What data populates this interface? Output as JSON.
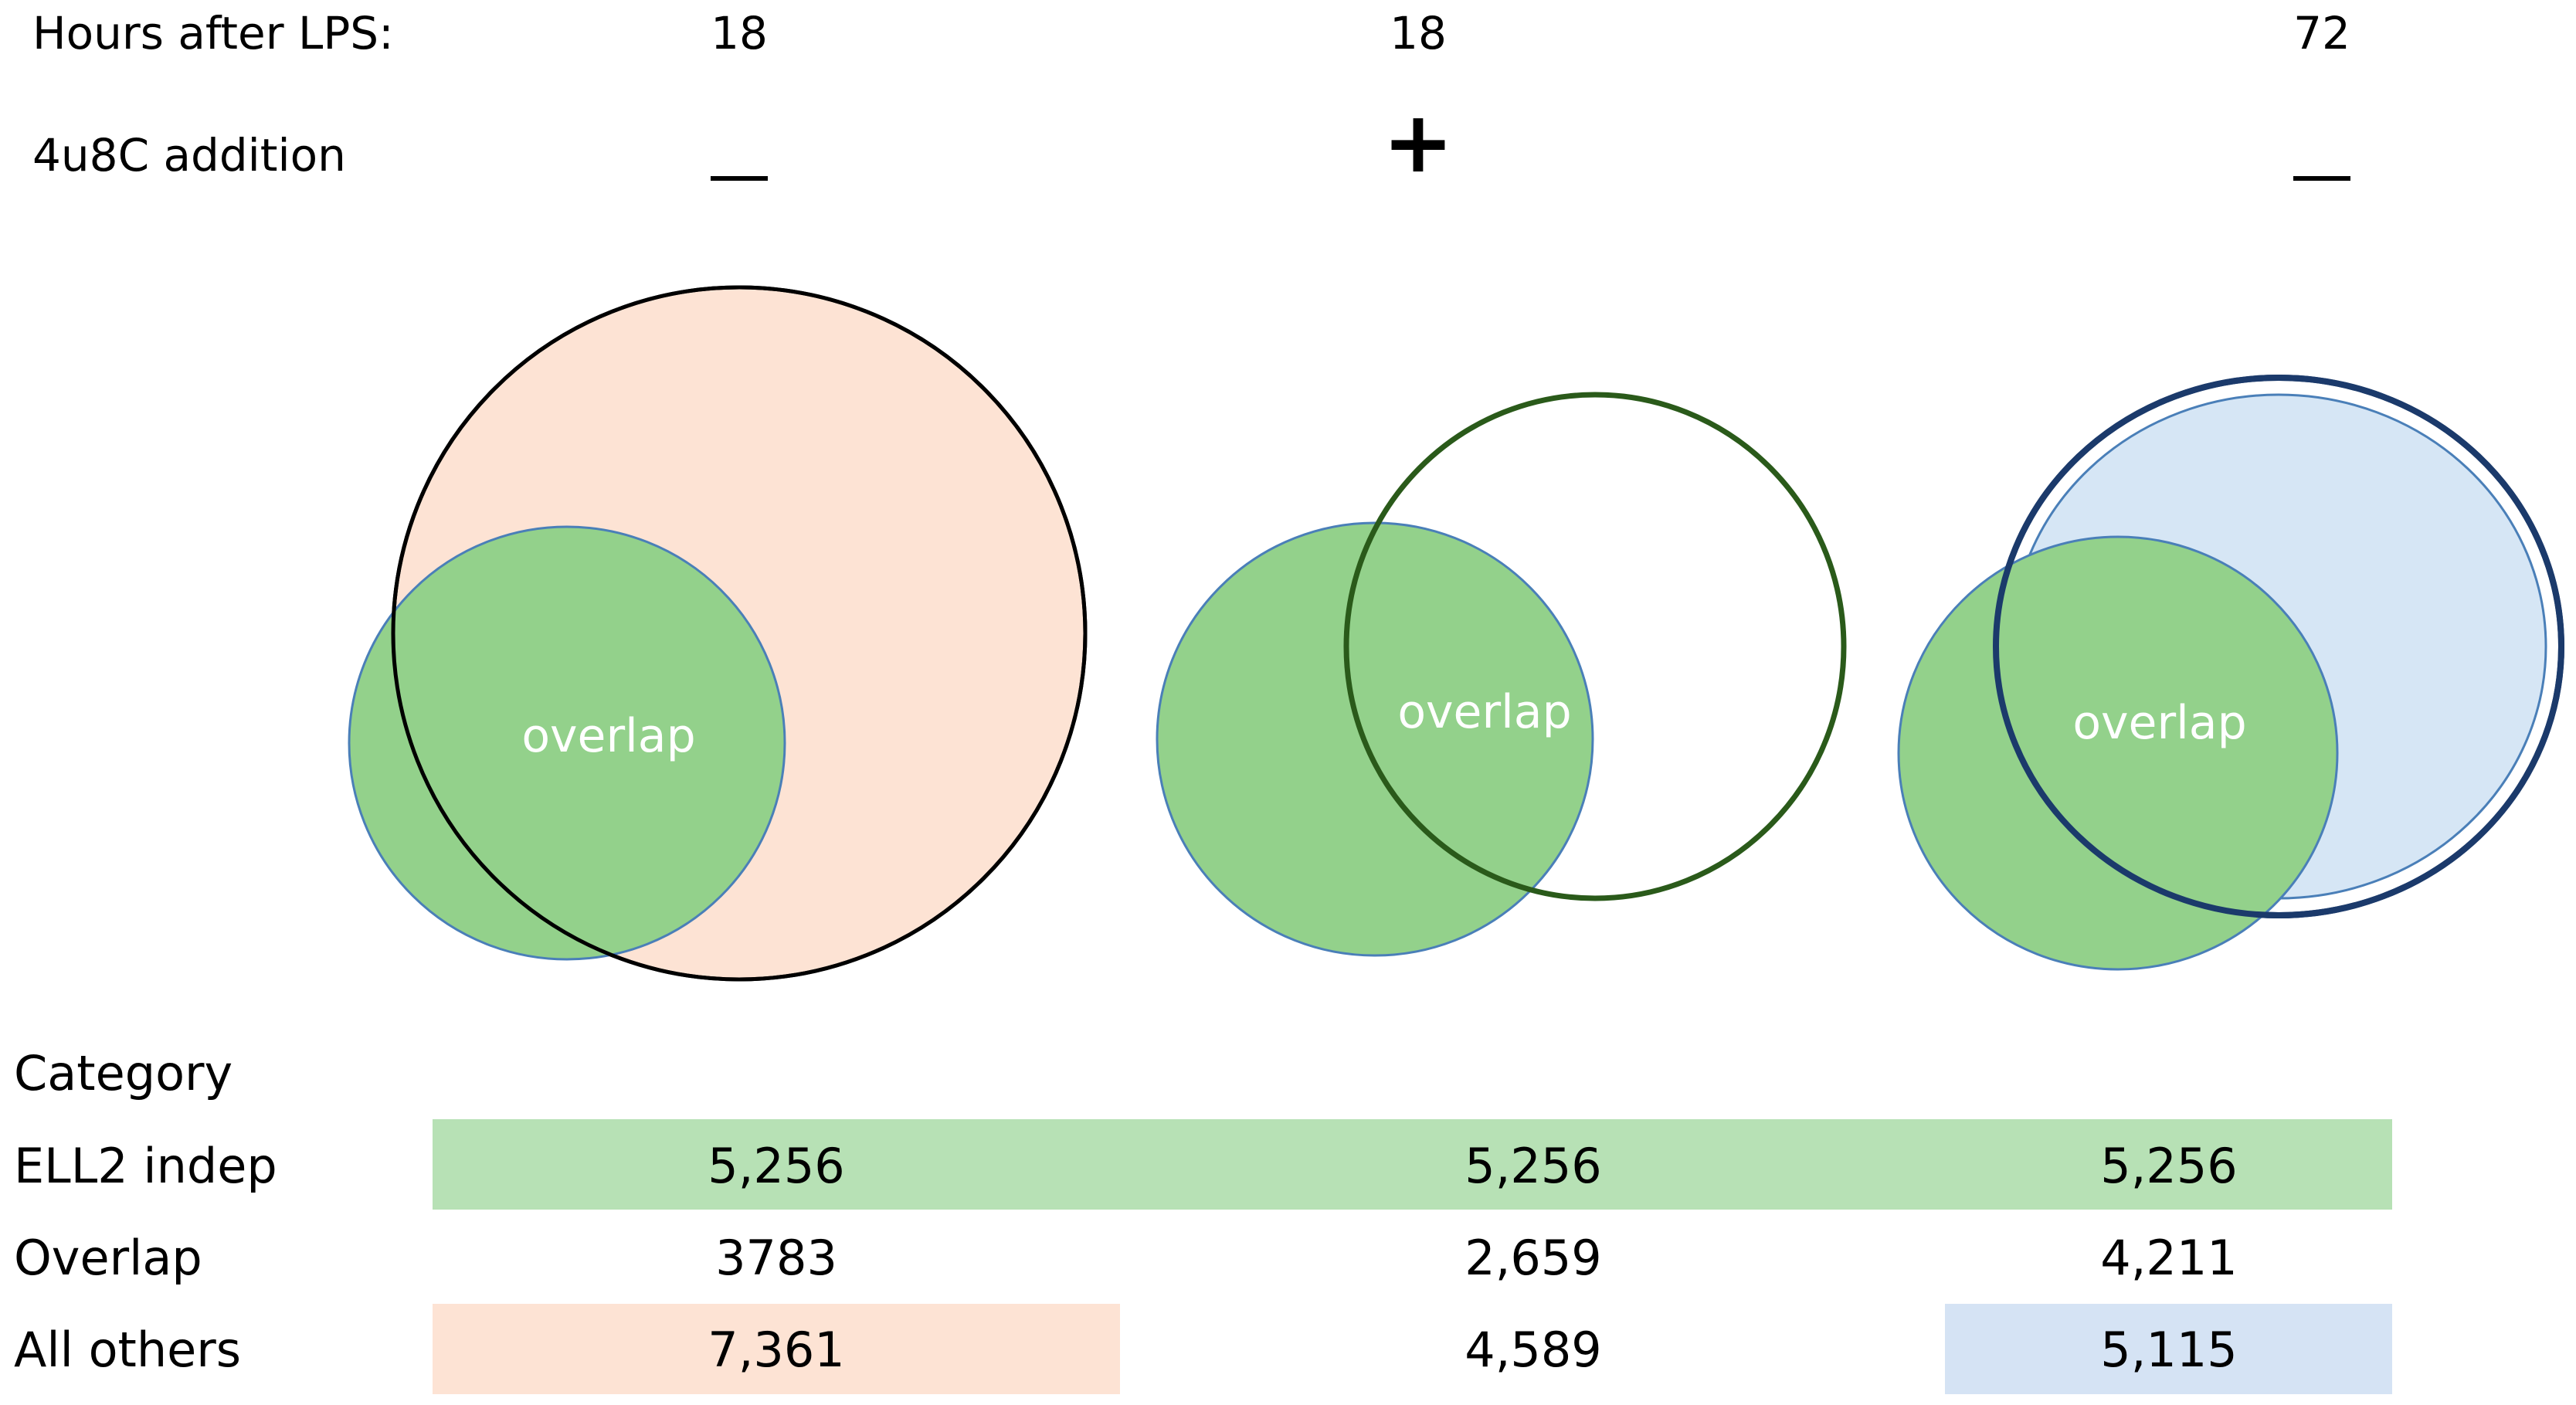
{
  "header": {
    "hours_label": "Hours after LPS:",
    "addition_label": "4u8C addition"
  },
  "conditions": [
    {
      "hours": "18",
      "addition": "—",
      "addition_sign": "minus"
    },
    {
      "hours": "18",
      "addition": "+",
      "addition_sign": "plus"
    },
    {
      "hours": "72",
      "addition": "—",
      "addition_sign": "minus"
    }
  ],
  "venn": {
    "overlap_label": "overlap",
    "colors": {
      "ell2_indep_fill": "#93d18b",
      "ell2_indep_stroke": "#4a7fb8",
      "cond1_fill": "#fde3d4",
      "cond1_stroke": "#000000",
      "cond2_fill": "none",
      "cond2_stroke": "#2a5a1a",
      "cond3_fill": "#d6e6f5",
      "cond3_stroke": "#1b3a6b"
    }
  },
  "table": {
    "header_label": "Category",
    "rows": [
      {
        "label": "ELL2 indep",
        "values": [
          "5,256",
          "5,256",
          "5,256"
        ]
      },
      {
        "label": "Overlap",
        "values": [
          "3783",
          "2,659",
          "4,211"
        ]
      },
      {
        "label": "All others",
        "values": [
          "7,361",
          "4,589",
          "5,115"
        ]
      }
    ],
    "colors": {
      "ell2_row_bg": "#b7e1b5",
      "others_cond1_bg": "#fde3d4",
      "others_cond3_bg": "#d5e3f4"
    }
  }
}
